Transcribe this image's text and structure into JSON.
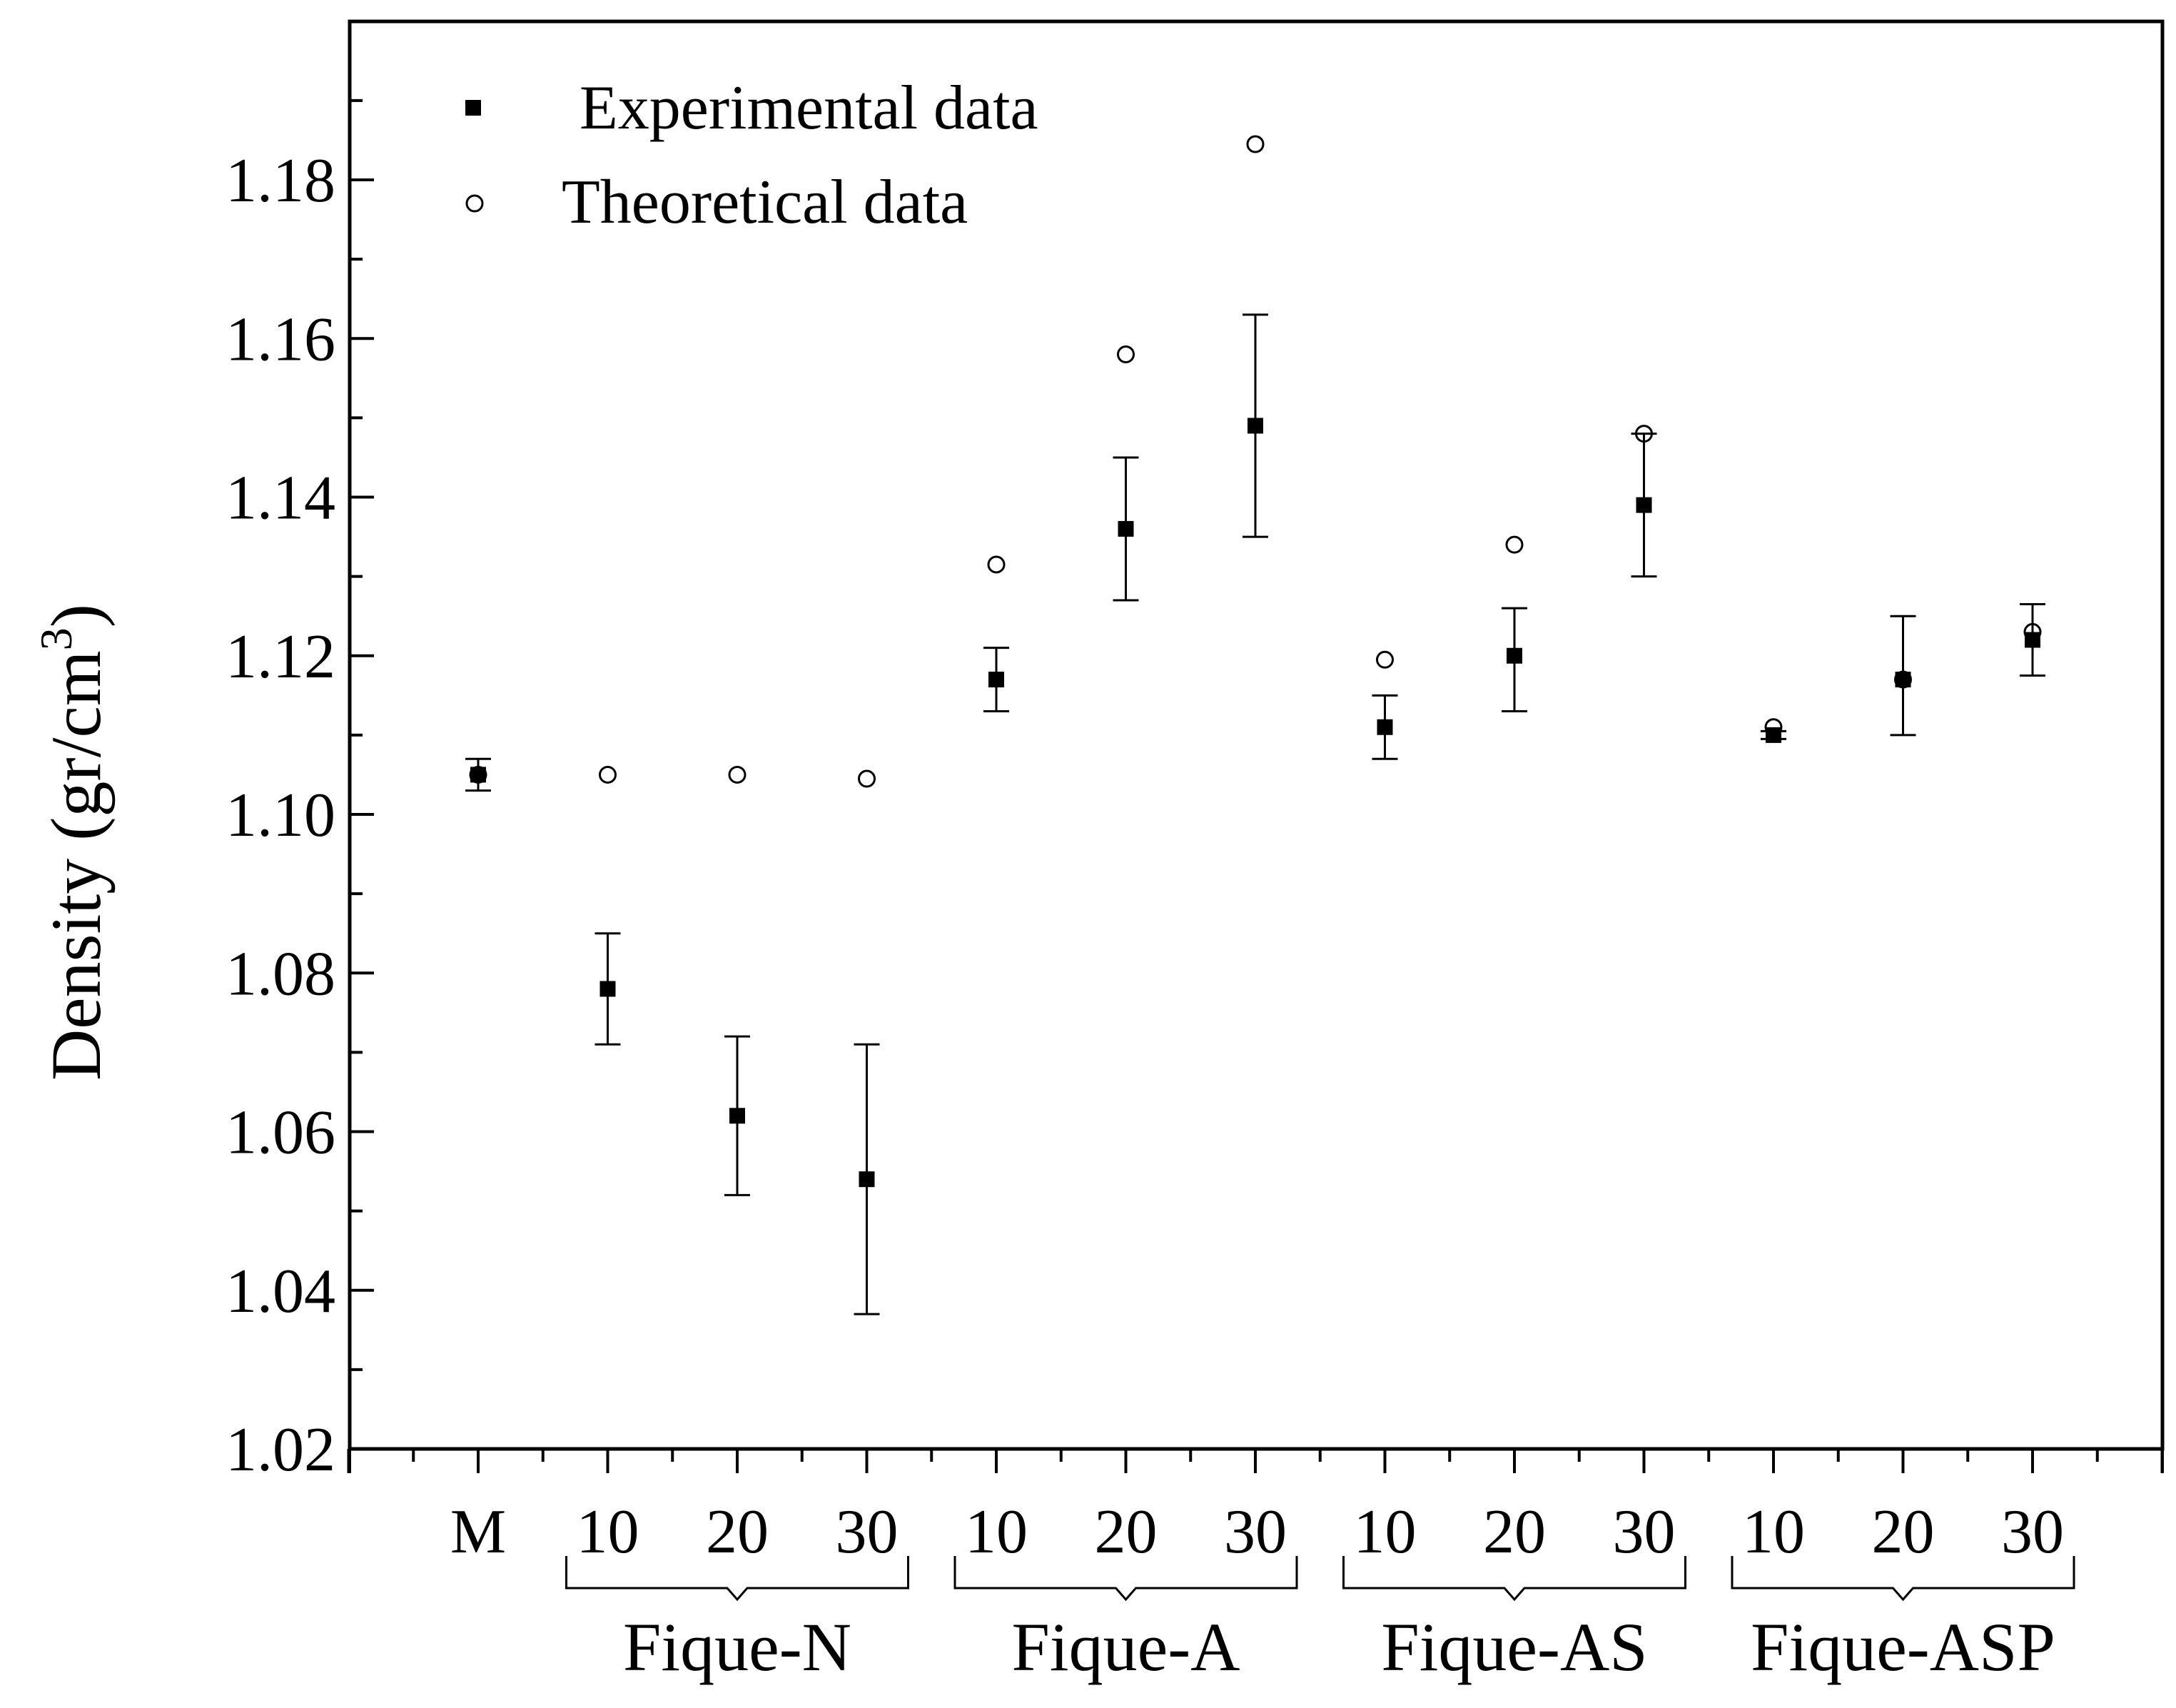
{
  "chart_data": {
    "type": "scatter",
    "title": "",
    "xlabel": "",
    "ylabel": "Density (gr/cm",
    "ylabel_superscript": "3",
    "ylabel_close": ")",
    "ylim": [
      1.02,
      1.2
    ],
    "yticks": [
      1.02,
      1.04,
      1.06,
      1.08,
      1.1,
      1.12,
      1.14,
      1.16,
      1.18
    ],
    "ytick_labels": [
      "1.02",
      "1.04",
      "1.06",
      "1.08",
      "1.10",
      "1.12",
      "1.14",
      "1.16",
      "1.18"
    ],
    "categories": [
      "M",
      "10",
      "20",
      "30",
      "10",
      "20",
      "30",
      "10",
      "20",
      "30",
      "10",
      "20",
      "30"
    ],
    "groups": [
      {
        "label": "Fique-N",
        "from": 1,
        "to": 3
      },
      {
        "label": "Fique-A",
        "from": 4,
        "to": 6
      },
      {
        "label": "Fique-AS",
        "from": 7,
        "to": 9
      },
      {
        "label": "Fique-ASP",
        "from": 10,
        "to": 12
      }
    ],
    "legend_position": "top-left",
    "series": [
      {
        "name": "Experimental data",
        "marker": "filled-square",
        "values": [
          1.105,
          1.078,
          1.062,
          1.054,
          1.117,
          1.136,
          1.149,
          1.111,
          1.12,
          1.139,
          1.11,
          1.117,
          1.122
        ],
        "err_low": [
          0.002,
          0.007,
          0.01,
          0.017,
          0.004,
          0.009,
          0.014,
          0.004,
          0.007,
          0.009,
          0.0005,
          0.007,
          0.0045
        ],
        "err_high": [
          0.002,
          0.007,
          0.01,
          0.017,
          0.004,
          0.009,
          0.014,
          0.004,
          0.006,
          0.009,
          0.0005,
          0.008,
          0.0045
        ]
      },
      {
        "name": "Theoretical data",
        "marker": "open-circle",
        "values": [
          1.105,
          1.105,
          1.105,
          1.1045,
          1.1315,
          1.158,
          1.1845,
          1.1195,
          1.134,
          1.148,
          1.111,
          1.117,
          1.123
        ]
      }
    ]
  }
}
